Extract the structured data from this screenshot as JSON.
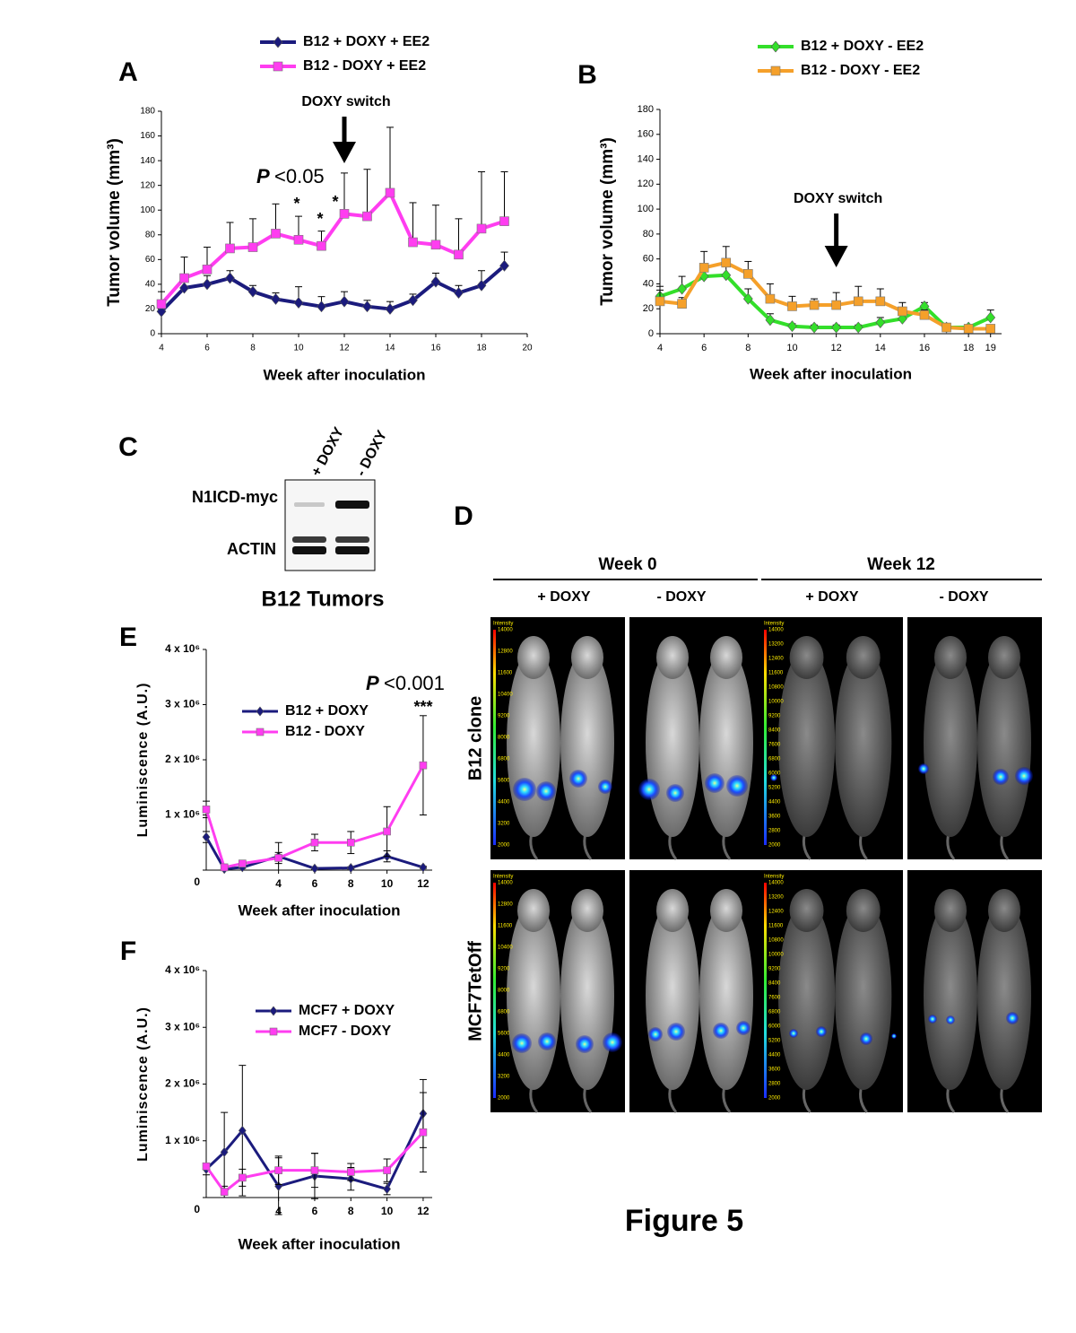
{
  "chart_data": [
    {
      "type": "line",
      "x_label": "Week after inoculation",
      "y_label": "Tumor volume (mm³)",
      "xlim": [
        4,
        20
      ],
      "xticks": [
        4,
        6,
        8,
        10,
        12,
        14,
        16,
        18,
        20
      ],
      "ylim": [
        0,
        180
      ],
      "yticks": [
        0,
        20,
        40,
        60,
        80,
        100,
        120,
        140,
        160,
        180
      ],
      "error_bars": "up",
      "series": [
        {
          "name": "B12 + DOXY + EE2",
          "color": "#1b1b7d",
          "marker": "diamond",
          "x": [
            4,
            5,
            6,
            7,
            8,
            9,
            10,
            11,
            12,
            13,
            14,
            15,
            16,
            17,
            18,
            19
          ],
          "values": [
            18,
            37,
            40,
            45,
            34,
            28,
            25,
            22,
            26,
            22,
            20,
            27,
            42,
            33,
            39,
            55
          ],
          "errors": [
            5,
            8,
            7,
            6,
            5,
            5,
            13,
            8,
            8,
            5,
            6,
            5,
            7,
            6,
            12,
            11
          ]
        },
        {
          "name": "B12 - DOXY + EE2",
          "color": "#ff3df0",
          "marker": "square",
          "x": [
            4,
            5,
            6,
            7,
            8,
            9,
            10,
            11,
            12,
            13,
            14,
            15,
            16,
            17,
            18,
            19
          ],
          "values": [
            24,
            45,
            52,
            69,
            70,
            81,
            76,
            71,
            97,
            95,
            114,
            74,
            72,
            64,
            85,
            91
          ],
          "errors": [
            10,
            17,
            18,
            21,
            23,
            24,
            19,
            12,
            33,
            38,
            53,
            32,
            32,
            29,
            46,
            40
          ]
        }
      ],
      "annotations": {
        "arrow_label": "DOXY switch",
        "arrow_x": 12,
        "p_symbol": "P",
        "p_text": "<0.05",
        "stars": [
          "*",
          "*",
          "*"
        ]
      }
    },
    {
      "type": "line",
      "x_label": "Week after inoculation",
      "y_label": "Tumor volume (mm³)",
      "xlim": [
        4,
        19.5
      ],
      "xticks": [
        4,
        6,
        8,
        10,
        12,
        14,
        16,
        18,
        19
      ],
      "ylim": [
        0,
        180
      ],
      "yticks": [
        0,
        20,
        40,
        60,
        80,
        100,
        120,
        140,
        160,
        180
      ],
      "error_bars": "up",
      "series": [
        {
          "name": "B12 + DOXY - EE2",
          "color": "#33df2a",
          "marker": "diamond",
          "x": [
            4,
            5,
            6,
            7,
            8,
            9,
            10,
            11,
            12,
            13,
            14,
            15,
            16,
            17,
            18,
            19
          ],
          "values": [
            30,
            36,
            46,
            47,
            28,
            11,
            6,
            5,
            5,
            5,
            9,
            12,
            22,
            5,
            5,
            13
          ],
          "errors": [
            5,
            10,
            5,
            8,
            8,
            5,
            2,
            2,
            2,
            2,
            4,
            4,
            3,
            2,
            2,
            6
          ]
        },
        {
          "name": "B12 - DOXY - EE2",
          "color": "#f5a02a",
          "marker": "square",
          "x": [
            4,
            5,
            6,
            7,
            8,
            9,
            10,
            11,
            12,
            13,
            14,
            15,
            16,
            17,
            18,
            19
          ],
          "values": [
            26,
            24,
            53,
            57,
            48,
            28,
            22,
            23,
            23,
            26,
            26,
            18,
            15,
            5,
            4,
            4
          ],
          "errors": [
            12,
            5,
            13,
            13,
            10,
            12,
            8,
            5,
            10,
            12,
            10,
            7,
            4,
            2,
            2,
            2
          ]
        }
      ],
      "annotations": {
        "arrow_label": "DOXY switch",
        "arrow_x": 12
      }
    },
    {
      "type": "line",
      "x_label": "Week after inoculation",
      "y_label": "Luminiscence (A.U.)",
      "xlim": [
        0,
        12.5
      ],
      "xticks": [
        4,
        6,
        8,
        10,
        12
      ],
      "ylim": [
        0,
        4000000
      ],
      "yticks": [
        0,
        {
          "value": 1000000,
          "label": "1 x 10⁶"
        },
        {
          "value": 2000000,
          "label": "2 x 10⁶"
        },
        {
          "value": 3000000,
          "label": "3 x 10⁶"
        },
        {
          "value": 4000000,
          "label": "4 x 10⁶"
        }
      ],
      "error_bars": "both",
      "series": [
        {
          "name": "B12 + DOXY",
          "color": "#1b1b7d",
          "marker": "diamond",
          "x": [
            0,
            1,
            2,
            4,
            6,
            8,
            10,
            12
          ],
          "values": [
            600000,
            20000,
            50000,
            250000,
            30000,
            40000,
            250000,
            50000
          ],
          "errors": [
            100000,
            20000,
            20000,
            250000,
            20000,
            20000,
            100000,
            20000
          ]
        },
        {
          "name": "B12 - DOXY",
          "color": "#ff3df0",
          "marker": "square",
          "x": [
            0,
            1,
            2,
            4,
            6,
            8,
            10,
            12
          ],
          "values": [
            1100000,
            50000,
            120000,
            220000,
            500000,
            500000,
            700000,
            1900000
          ],
          "errors": [
            150000,
            30000,
            30000,
            100000,
            150000,
            200000,
            450000,
            900000
          ]
        }
      ],
      "annotations": {
        "p_symbol": "P",
        "p_text": "<0.001",
        "stars": [
          "***"
        ]
      }
    },
    {
      "type": "line",
      "x_label": "Week after inoculation",
      "y_label": "Luminiscence (A.U.)",
      "xlim": [
        0,
        12.5
      ],
      "xticks": [
        4,
        6,
        8,
        10,
        12
      ],
      "ylim": [
        0,
        4000000
      ],
      "yticks": [
        0,
        {
          "value": 1000000,
          "label": "1 x 10⁶"
        },
        {
          "value": 2000000,
          "label": "2 x 10⁶"
        },
        {
          "value": 3000000,
          "label": "3 x 10⁶"
        },
        {
          "value": 4000000,
          "label": "4 x 10⁶"
        }
      ],
      "error_bars": "both",
      "series": [
        {
          "name": "MCF7 + DOXY",
          "color": "#1b1b7d",
          "marker": "diamond",
          "x": [
            0,
            1,
            2,
            4,
            6,
            8,
            10,
            12
          ],
          "values": [
            500000,
            800000,
            1180000,
            200000,
            380000,
            330000,
            150000,
            1480000
          ],
          "errors": [
            100000,
            700000,
            1150000,
            500000,
            400000,
            200000,
            100000,
            600000
          ]
        },
        {
          "name": "MCF7 - DOXY",
          "color": "#ff3df0",
          "marker": "square",
          "x": [
            0,
            1,
            2,
            4,
            6,
            8,
            10,
            12
          ],
          "values": [
            550000,
            100000,
            350000,
            480000,
            480000,
            450000,
            480000,
            1150000
          ],
          "errors": [
            50000,
            100000,
            150000,
            250000,
            300000,
            150000,
            200000,
            700000
          ]
        }
      ]
    }
  ],
  "panel_labels": [
    "A",
    "B",
    "C",
    "D",
    "E",
    "F"
  ],
  "blot": {
    "lanes": [
      "+ DOXY",
      "- DOXY"
    ],
    "rows": [
      "N1ICD-myc",
      "ACTIN"
    ],
    "caption": "B12 Tumors"
  },
  "imaging": {
    "columns": [
      "Week 0",
      "Week 12"
    ],
    "conditions": [
      "+ DOXY",
      "- DOXY",
      "+ DOXY",
      "- DOXY"
    ],
    "rows": [
      "B12 clone",
      "MCF7TetOff"
    ],
    "colorbar_title": "Intensity",
    "colorbar_ticks": [
      [
        14000,
        12800,
        11600,
        10400,
        9200,
        8000,
        6800,
        5600,
        4400,
        3200,
        2000
      ],
      [
        14000,
        13200,
        12400,
        11600,
        10800,
        10000,
        9200,
        8400,
        7600,
        6800,
        6000,
        5200,
        4400,
        3600,
        2800,
        2000
      ]
    ]
  },
  "figure_title": "Figure 5"
}
